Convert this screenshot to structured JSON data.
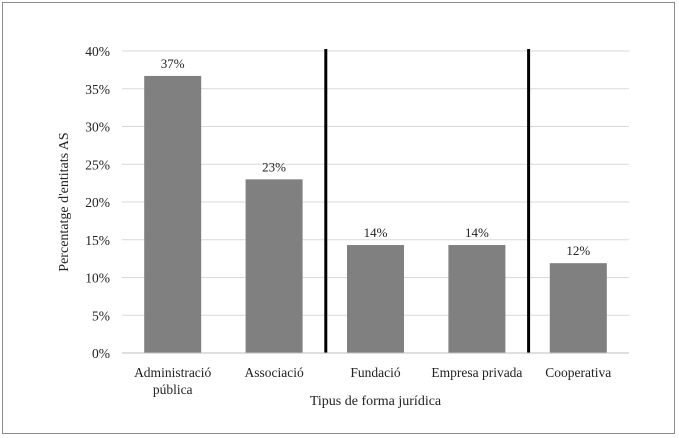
{
  "chart_data": {
    "type": "bar",
    "title": "",
    "xlabel": "Tipus de forma jurídica",
    "ylabel": "Percentatge d'entitats AS",
    "ylim": [
      0,
      40
    ],
    "y_ticks": [
      "0%",
      "5%",
      "10%",
      "15%",
      "20%",
      "25%",
      "30%",
      "35%",
      "40%"
    ],
    "categories": [
      [
        "Administració",
        "pública"
      ],
      [
        "Associació"
      ],
      [
        "Fundació"
      ],
      [
        "Empresa privada"
      ],
      [
        "Cooperativa"
      ]
    ],
    "values": [
      36.7,
      23.0,
      14.3,
      14.3,
      11.9
    ],
    "data_labels": [
      "37%",
      "23%",
      "14%",
      "14%",
      "12%"
    ],
    "bar_color": "#808080",
    "grid": true,
    "group_separators_after_category": [
      1,
      3
    ],
    "legend": "none"
  }
}
